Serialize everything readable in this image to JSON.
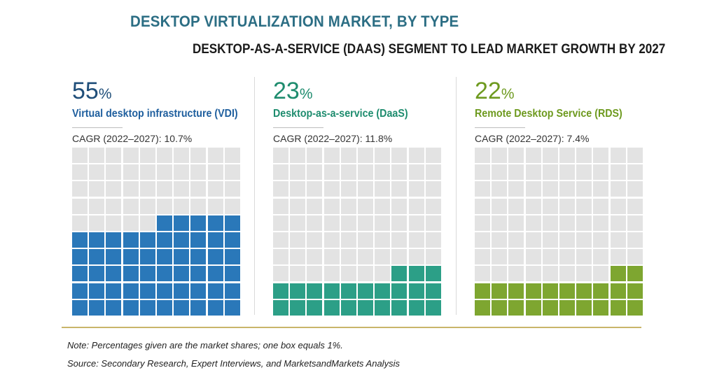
{
  "header": {
    "title": "DESKTOP VIRTUALIZATION MARKET, BY TYPE",
    "subtitle": "DESKTOP-AS-A-SERVICE (DAAS) SEGMENT TO LEAD MARKET GROWTH BY 2027"
  },
  "chart_data": {
    "type": "waffle",
    "unit_value": "1%",
    "grid": "10x10",
    "empty_color": "#E3E3E3",
    "series": [
      {
        "name": "Virtual desktop infrastructure (VDI)",
        "value": 55,
        "value_label": "55",
        "cagr": "CAGR (2022–2027): 10.7%",
        "color": "#2A78B9"
      },
      {
        "name": "Desktop-as-a-service (DaaS)",
        "value": 23,
        "value_label": "23",
        "cagr": "CAGR (2022–2027): 11.8%",
        "color": "#2C9F87"
      },
      {
        "name": "Remote Desktop Service (RDS)",
        "value": 22,
        "value_label": "22",
        "cagr": "CAGR (2022–2027): 7.4%",
        "color": "#7EA630"
      }
    ]
  },
  "panels": [
    {
      "pct": "55",
      "sym": "%",
      "label": "Virtual desktop infrastructure (VDI)",
      "cagr": "CAGR (2022–2027): 10.7%"
    },
    {
      "pct": "23",
      "sym": "%",
      "label": "Desktop-as-a-service (DaaS)",
      "cagr": "CAGR (2022–2027): 11.8%"
    },
    {
      "pct": "22",
      "sym": "%",
      "label": "Remote Desktop Service (RDS)",
      "cagr": "CAGR (2022–2027): 7.4%"
    }
  ],
  "colors": {
    "title": "#2C6E84",
    "vdi_pct": "#1F4E79",
    "vdi": "#2A78B9",
    "daas": "#2C9F87",
    "rds": "#7EA630",
    "rule": "#C9B56A"
  },
  "footer": {
    "note": "Note: Percentages given are the market shares; one box equals 1%.",
    "source": "Source: Secondary Research, Expert Interviews, and MarketsandMarkets Analysis"
  }
}
